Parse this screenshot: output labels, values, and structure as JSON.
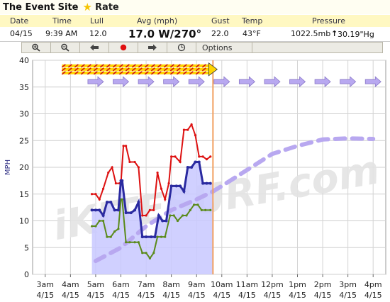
{
  "header": {
    "site_title": "The Event Site",
    "rate_label": "Rate"
  },
  "columns": {
    "date": "Date",
    "time": "Time",
    "lull": "Lull",
    "avg": "Avg (mph)",
    "gust": "Gust",
    "temp": "Temp",
    "pressure": "Pressure"
  },
  "current": {
    "date": "04/15",
    "time": "9:39 AM",
    "lull": "12.0",
    "avg": "17.0 W/270°",
    "gust": "22.0",
    "temp": "43°F",
    "pressure": "1022.5mb",
    "pressure_alt": "30.19\"Hg",
    "pressure_trend": "↑"
  },
  "toolbar": {
    "zoom_in": "zoom-in-icon",
    "zoom_out": "zoom-out-icon",
    "back": "left-arrow-icon",
    "record": "record-icon",
    "forward": "right-arrow-icon",
    "clock": "clock-icon",
    "options_label": "Options"
  },
  "watermark": "iKITESURF.com",
  "colors": {
    "gust": "#dd1111",
    "avg": "#2a2aa0",
    "lull": "#5a8a1a",
    "fill": "#c8c8ff",
    "forecast": "#b8a8f0",
    "now_line": "#f2a060"
  },
  "chart_data": {
    "type": "line",
    "ylabel": "MPH",
    "ylim": [
      0,
      40
    ],
    "yticks": [
      0,
      5,
      10,
      15,
      20,
      25,
      30,
      35,
      40
    ],
    "xticks": [
      {
        "t": 3,
        "time": "3am",
        "date": "4/15"
      },
      {
        "t": 4,
        "time": "4am",
        "date": "4/15"
      },
      {
        "t": 5,
        "time": "5am",
        "date": "4/15"
      },
      {
        "t": 6,
        "time": "6am",
        "date": "4/15"
      },
      {
        "t": 7,
        "time": "7am",
        "date": "4/15"
      },
      {
        "t": 8,
        "time": "8am",
        "date": "4/15"
      },
      {
        "t": 9,
        "time": "9am",
        "date": "4/15"
      },
      {
        "t": 10,
        "time": "10am",
        "date": "4/15"
      },
      {
        "t": 11,
        "time": "11am",
        "date": "4/15"
      },
      {
        "t": 12,
        "time": "12pm",
        "date": "4/15"
      },
      {
        "t": 13,
        "time": "1pm",
        "date": "4/15"
      },
      {
        "t": 14,
        "time": "2pm",
        "date": "4/15"
      },
      {
        "t": 15,
        "time": "3pm",
        "date": "4/15"
      },
      {
        "t": 16,
        "time": "4pm",
        "date": "4/15"
      }
    ],
    "xlim": [
      2.5,
      16.5
    ],
    "now_t": 9.65,
    "series": [
      {
        "key": "gust",
        "x": [
          4.85,
          5,
          5.15,
          5.3,
          5.5,
          5.65,
          5.8,
          5.95,
          6.0,
          6.1,
          6.2,
          6.35,
          6.55,
          6.7,
          6.85,
          7.0,
          7.15,
          7.3,
          7.45,
          7.6,
          7.75,
          7.9,
          8.0,
          8.15,
          8.35,
          8.5,
          8.65,
          8.8,
          8.95,
          9.1,
          9.25,
          9.4,
          9.55
        ],
        "y": [
          15,
          15,
          14,
          16,
          19,
          20,
          17,
          17,
          17,
          24,
          24,
          21,
          21,
          20,
          11,
          11,
          12,
          12,
          19,
          16,
          14,
          17,
          22,
          22,
          21,
          27,
          27,
          28,
          26,
          22,
          22,
          21.5,
          22
        ]
      },
      {
        "key": "avg",
        "x": [
          4.85,
          5.0,
          5.15,
          5.3,
          5.45,
          5.6,
          5.75,
          5.9,
          6.0,
          6.05,
          6.2,
          6.4,
          6.55,
          6.7,
          6.85,
          7.0,
          7.2,
          7.35,
          7.5,
          7.65,
          7.8,
          8.0,
          8.2,
          8.35,
          8.5,
          8.65,
          8.8,
          8.95,
          9.1,
          9.25,
          9.4,
          9.55
        ],
        "y": [
          12,
          12,
          12,
          11,
          13.5,
          13.5,
          12,
          12,
          17.5,
          17.5,
          11.5,
          11.5,
          12,
          13.5,
          7,
          7,
          7,
          7,
          11,
          10,
          10,
          16.5,
          16.5,
          16.5,
          15.5,
          20,
          20,
          21,
          21,
          17,
          17,
          17
        ]
      },
      {
        "key": "lull",
        "x": [
          4.85,
          5.0,
          5.15,
          5.3,
          5.45,
          5.6,
          5.75,
          5.9,
          6.0,
          6.05,
          6.2,
          6.35,
          6.55,
          6.7,
          6.85,
          7.0,
          7.15,
          7.3,
          7.45,
          7.6,
          7.75,
          7.95,
          8.1,
          8.25,
          8.45,
          8.6,
          8.75,
          8.9,
          9.05,
          9.2,
          9.35,
          9.55
        ],
        "y": [
          9,
          9,
          10,
          10,
          7,
          7,
          8,
          8.5,
          14,
          14,
          6,
          6,
          6,
          6,
          4,
          4,
          3,
          4,
          7,
          7,
          7,
          11,
          11,
          10,
          11,
          11,
          12,
          13,
          13,
          12,
          12,
          12
        ]
      },
      {
        "key": "forecast_avg",
        "x": [
          5,
          6,
          7,
          8,
          9,
          9.65,
          10,
          11,
          12,
          13,
          14,
          15,
          16
        ],
        "y": [
          2.5,
          5,
          9,
          12,
          14,
          15.5,
          16.5,
          19.5,
          22.5,
          24,
          25.2,
          25.4,
          25.3
        ]
      }
    ],
    "direction_arrows": {
      "y": 36,
      "t": [
        5,
        6,
        7,
        8,
        9,
        10,
        11,
        12,
        13,
        14,
        15,
        16
      ]
    },
    "obs_direction_band": {
      "y": 38.3,
      "t_start": 4.0,
      "t_end": 9.65
    }
  }
}
